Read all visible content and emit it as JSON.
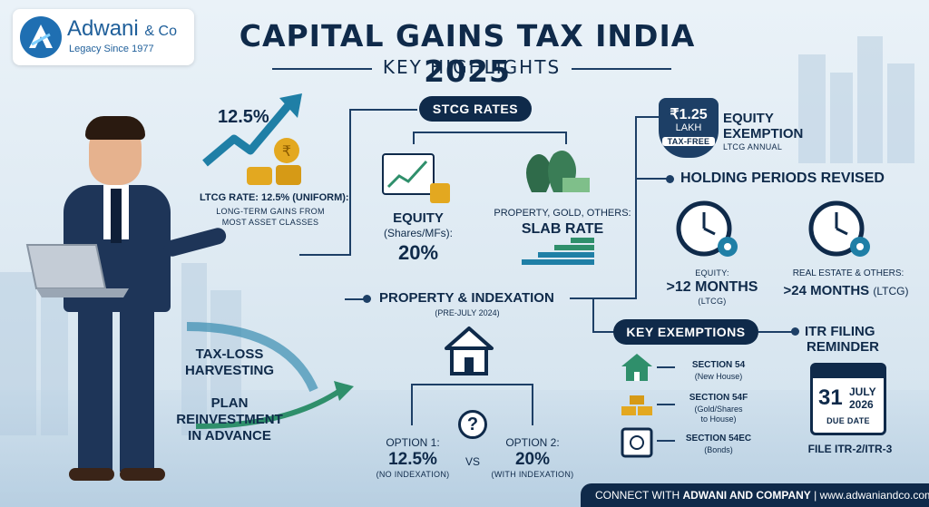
{
  "logo": {
    "name": "Adwani",
    "suffix": "& Co",
    "tagline": "Legacy Since 1977"
  },
  "header": {
    "title": "CAPITAL GAINS TAX INDIA 2025",
    "subtitle": "KEY HIGHLIGHTS"
  },
  "ltcg": {
    "rate_big": "12.5%",
    "rate_title": "LTCG RATE: 12.5% (UNIFORM):",
    "rate_desc1": "LONG-TERM GAINS FROM",
    "rate_desc2": "MOST ASSET CLASSES"
  },
  "stcg": {
    "pill": "STCG RATES",
    "equity_title": "EQUITY",
    "equity_sub": "(Shares/MFs):",
    "equity_rate": "20%",
    "others_title": "PROPERTY, GOLD, OTHERS:",
    "others_rate": "SLAB RATE"
  },
  "exemption": {
    "amount": "₹1.25",
    "unit": "LAKH",
    "badge": "TAX-FREE",
    "title1": "EQUITY",
    "title2": "EXEMPTION",
    "sub": "LTCG ANNUAL"
  },
  "holding": {
    "pill": "HOLDING PERIODS REVISED",
    "equity_label": "EQUITY:",
    "equity_value": ">12 MONTHS",
    "equity_note": "(LTCG)",
    "re_label": "REAL ESTATE & OTHERS:",
    "re_value": ">24 MONTHS",
    "re_note": "(LTCG)"
  },
  "property": {
    "pill": "PROPERTY & INDEXATION",
    "sub": "(PRE-JULY 2024)",
    "q": "?",
    "opt1_label": "OPTION 1:",
    "opt1_value": "12.5%",
    "opt1_note": "(NO INDEXATION)",
    "vs": "VS",
    "opt2_label": "OPTION 2:",
    "opt2_value": "20%",
    "opt2_note": "(WITH INDEXATION)"
  },
  "tips": {
    "tip1a": "TAX-LOSS",
    "tip1b": "HARVESTING",
    "tip2a": "PLAN",
    "tip2b": "REINVESTMENT",
    "tip2c": "IN ADVANCE"
  },
  "exemptions": {
    "pill": "KEY EXEMPTIONS",
    "items": [
      {
        "title": "SECTION 54",
        "sub": "(New House)"
      },
      {
        "title": "SECTION 54F",
        "sub": "(Gold/Shares",
        "sub2": "to House)"
      },
      {
        "title": "SECTION 54EC",
        "sub": "(Bonds)"
      }
    ]
  },
  "itr": {
    "title1": "ITR FILING",
    "title2": "REMINDER",
    "day": "31",
    "month": "JULY",
    "year": "2026",
    "due": "DUE DATE",
    "file": "FILE ITR-2/ITR-3"
  },
  "footer": {
    "connect": "CONNECT WITH",
    "company": "ADWANI AND COMPANY",
    "sep": "|",
    "site": "www.adwaniandco.com"
  },
  "colors": {
    "navy": "#0f2a4a",
    "teal": "#1f7fa6",
    "gold": "#e3a820",
    "green": "#2f8f6b"
  }
}
